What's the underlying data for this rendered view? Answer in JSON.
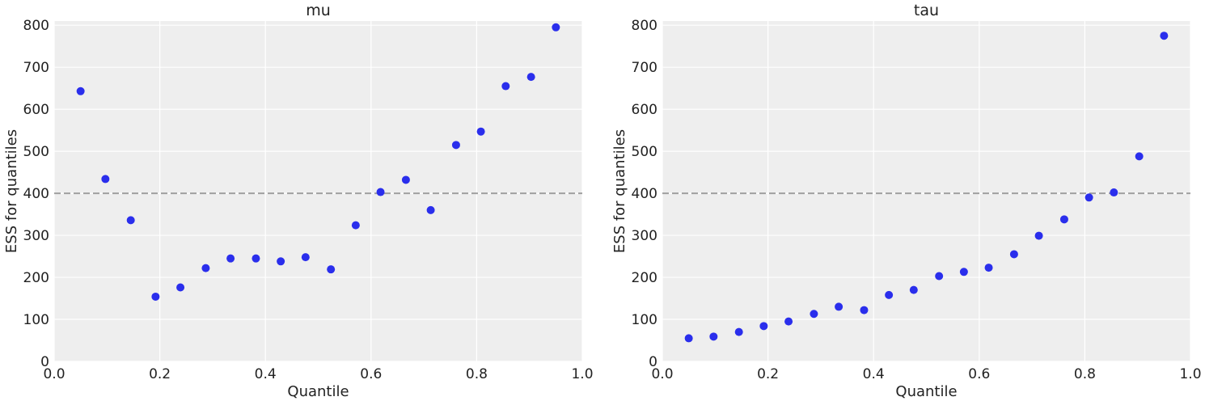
{
  "chart_data": [
    {
      "type": "scatter",
      "title": "mu",
      "xlabel": "Quantile",
      "ylabel": "ESS for quantiles",
      "xlim": [
        0,
        1
      ],
      "ylim": [
        0,
        810
      ],
      "xticks": [
        "0.0",
        "0.2",
        "0.4",
        "0.6",
        "0.8",
        "1.0"
      ],
      "yticks": [
        "0",
        "100",
        "200",
        "300",
        "400",
        "500",
        "600",
        "700",
        "800"
      ],
      "grid": true,
      "reference_line": 400,
      "point_color": "#2a2eec",
      "x": [
        0.05,
        0.097,
        0.145,
        0.192,
        0.239,
        0.287,
        0.334,
        0.382,
        0.429,
        0.476,
        0.524,
        0.571,
        0.618,
        0.666,
        0.713,
        0.761,
        0.808,
        0.855,
        0.903,
        0.95
      ],
      "y": [
        643,
        434,
        336,
        154,
        176,
        222,
        245,
        245,
        238,
        248,
        219,
        324,
        403,
        432,
        360,
        515,
        547,
        655,
        677,
        795
      ]
    },
    {
      "type": "scatter",
      "title": "tau",
      "xlabel": "Quantile",
      "ylabel": "ESS for quantiles",
      "xlim": [
        0,
        1
      ],
      "ylim": [
        0,
        810
      ],
      "xticks": [
        "0.0",
        "0.2",
        "0.4",
        "0.6",
        "0.8",
        "1.0"
      ],
      "yticks": [
        "0",
        "100",
        "200",
        "300",
        "400",
        "500",
        "600",
        "700",
        "800"
      ],
      "grid": true,
      "reference_line": 400,
      "point_color": "#2a2eec",
      "x": [
        0.05,
        0.097,
        0.145,
        0.192,
        0.239,
        0.287,
        0.334,
        0.382,
        0.429,
        0.476,
        0.524,
        0.571,
        0.618,
        0.666,
        0.713,
        0.761,
        0.808,
        0.855,
        0.903,
        0.95
      ],
      "y": [
        55,
        59,
        70,
        84,
        95,
        113,
        130,
        122,
        158,
        170,
        203,
        213,
        223,
        255,
        299,
        338,
        390,
        402,
        488,
        775
      ]
    }
  ]
}
